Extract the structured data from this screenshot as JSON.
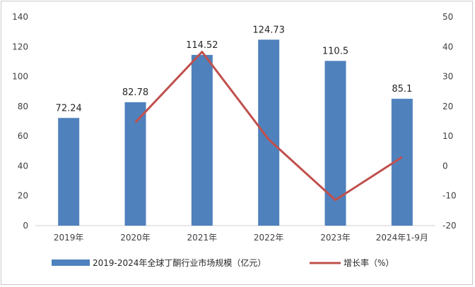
{
  "chart_data": {
    "type": "bar",
    "categories": [
      "2019年",
      "2020年",
      "2021年",
      "2022年",
      "2023年",
      "2024年1-9月"
    ],
    "series": [
      {
        "name": "2019-2024年全球丁酮行业市场规模（亿元）",
        "type": "bar",
        "axis": "left",
        "values": [
          72.24,
          82.78,
          114.52,
          124.73,
          110.5,
          85.1
        ],
        "data_labels": [
          "72.24",
          "82.78",
          "114.52",
          "124.73",
          "110.5",
          "85.1"
        ],
        "color": "#4f81bd"
      },
      {
        "name": "增长率（%）",
        "type": "line",
        "axis": "right",
        "values": [
          null,
          14.6,
          38.3,
          8.9,
          -11.4,
          3.0
        ],
        "color": "#c0504d"
      }
    ],
    "y_left": {
      "range": [
        0,
        140
      ],
      "step": 20,
      "ticks": [
        "0",
        "20",
        "40",
        "60",
        "80",
        "100",
        "120",
        "140"
      ]
    },
    "y_right": {
      "range": [
        -20,
        50
      ],
      "step": 10,
      "ticks": [
        "-20",
        "-10",
        "0",
        "10",
        "20",
        "30",
        "40",
        "50"
      ]
    },
    "grid": false,
    "legend_position": "bottom"
  }
}
